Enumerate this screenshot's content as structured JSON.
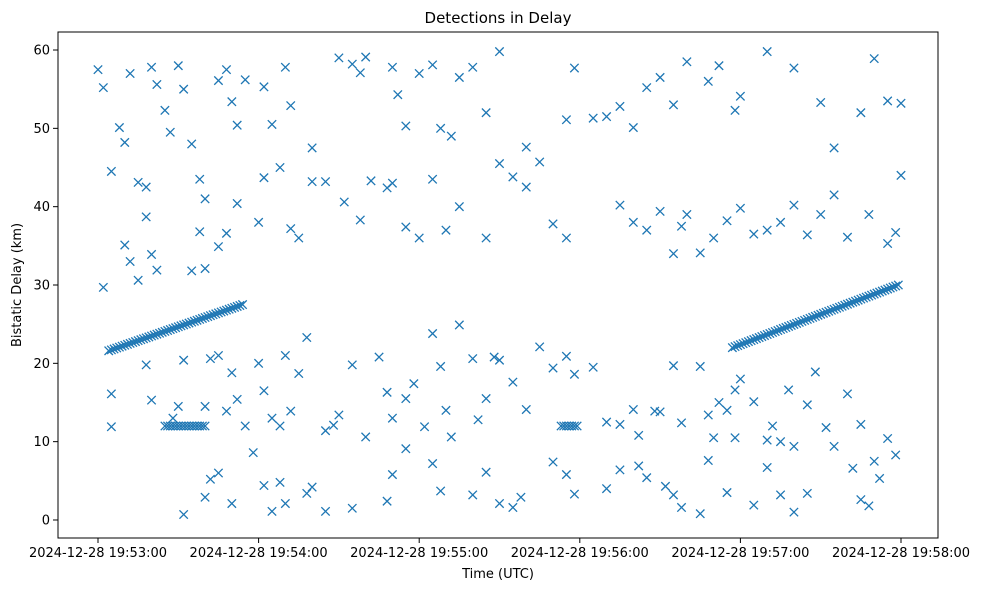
{
  "chart_data": {
    "type": "scatter",
    "title": "Detections in Delay",
    "xlabel": "Time (UTC)",
    "ylabel": "Bistatic Delay (km)",
    "marker": "x",
    "color": "#1f77b4",
    "grid": false,
    "legend": "none",
    "x_unit": "seconds after 2024-12-28 19:53:00",
    "xlim_labels": [
      "2024-12-28 19:53:00",
      "2024-12-28 19:58:00"
    ],
    "ylim": [
      -2.3,
      62.3
    ],
    "x_ticks": [
      "2024-12-28 19:53:00",
      "2024-12-28 19:54:00",
      "2024-12-28 19:55:00",
      "2024-12-28 19:56:00",
      "2024-12-28 19:57:00",
      "2024-12-28 19:58:00"
    ],
    "y_ticks": [
      "0",
      "10",
      "20",
      "30",
      "40",
      "50",
      "60"
    ],
    "tracks": [
      {
        "from": [
          "2024-12-28 19:53:04",
          21.6
        ],
        "to": [
          "2024-12-28 19:53:54",
          27.5
        ]
      },
      {
        "from": [
          "2024-12-28 19:56:57",
          22.0
        ],
        "to": [
          "2024-12-28 19:57:59",
          30.0
        ]
      },
      {
        "from": [
          "2024-12-28 19:53:25",
          12.0
        ],
        "to": [
          "2024-12-28 19:53:40",
          12.0
        ]
      },
      {
        "from": [
          "2024-12-28 19:55:53",
          12.0
        ],
        "to": [
          "2024-12-28 19:55:59",
          12.0
        ]
      }
    ],
    "scatter": [
      [
        "2024-12-28 19:53:00",
        57.5
      ],
      [
        "2024-12-28 19:53:02",
        55.2
      ],
      [
        "2024-12-28 19:53:05",
        44.5
      ],
      [
        "2024-12-28 19:53:08",
        50.1
      ],
      [
        "2024-12-28 19:53:10",
        48.2
      ],
      [
        "2024-12-28 19:53:12",
        57.0
      ],
      [
        "2024-12-28 19:53:15",
        43.1
      ],
      [
        "2024-12-28 19:53:18",
        42.5
      ],
      [
        "2024-12-28 19:53:20",
        57.8
      ],
      [
        "2024-12-28 19:53:22",
        55.6
      ],
      [
        "2024-12-28 19:53:25",
        52.3
      ],
      [
        "2024-12-28 19:53:27",
        49.5
      ],
      [
        "2024-12-28 19:53:30",
        58.0
      ],
      [
        "2024-12-28 19:53:32",
        55.0
      ],
      [
        "2024-12-28 19:53:35",
        48.0
      ],
      [
        "2024-12-28 19:53:38",
        43.5
      ],
      [
        "2024-12-28 19:53:40",
        41.0
      ],
      [
        "2024-12-28 19:53:45",
        56.1
      ],
      [
        "2024-12-28 19:53:48",
        57.5
      ],
      [
        "2024-12-28 19:53:50",
        53.4
      ],
      [
        "2024-12-28 19:53:52",
        50.4
      ],
      [
        "2024-12-28 19:53:55",
        56.2
      ],
      [
        "2024-12-28 19:54:02",
        55.3
      ],
      [
        "2024-12-28 19:54:05",
        50.5
      ],
      [
        "2024-12-28 19:54:10",
        57.8
      ],
      [
        "2024-12-28 19:54:12",
        52.9
      ],
      [
        "2024-12-28 19:54:20",
        47.5
      ],
      [
        "2024-12-28 19:54:30",
        59.0
      ],
      [
        "2024-12-28 19:54:35",
        58.2
      ],
      [
        "2024-12-28 19:54:38",
        57.1
      ],
      [
        "2024-12-28 19:54:40",
        59.1
      ],
      [
        "2024-12-28 19:54:50",
        57.8
      ],
      [
        "2024-12-28 19:54:52",
        54.3
      ],
      [
        "2024-12-28 19:54:55",
        50.3
      ],
      [
        "2024-12-28 19:55:00",
        57.0
      ],
      [
        "2024-12-28 19:55:05",
        58.1
      ],
      [
        "2024-12-28 19:55:08",
        50.0
      ],
      [
        "2024-12-28 19:55:12",
        49.0
      ],
      [
        "2024-12-28 19:55:15",
        56.5
      ],
      [
        "2024-12-28 19:55:20",
        57.8
      ],
      [
        "2024-12-28 19:55:25",
        52.0
      ],
      [
        "2024-12-28 19:55:30",
        59.8
      ],
      [
        "2024-12-28 19:55:40",
        47.6
      ],
      [
        "2024-12-28 19:55:45",
        45.7
      ],
      [
        "2024-12-28 19:55:55",
        51.1
      ],
      [
        "2024-12-28 19:55:58",
        57.7
      ],
      [
        "2024-12-28 19:56:05",
        51.3
      ],
      [
        "2024-12-28 19:56:10",
        51.5
      ],
      [
        "2024-12-28 19:56:15",
        52.8
      ],
      [
        "2024-12-28 19:56:20",
        50.1
      ],
      [
        "2024-12-28 19:56:25",
        55.2
      ],
      [
        "2024-12-28 19:56:30",
        56.5
      ],
      [
        "2024-12-28 19:56:35",
        53.0
      ],
      [
        "2024-12-28 19:56:40",
        58.5
      ],
      [
        "2024-12-28 19:56:48",
        56.0
      ],
      [
        "2024-12-28 19:56:52",
        58.0
      ],
      [
        "2024-12-28 19:56:58",
        52.3
      ],
      [
        "2024-12-28 19:57:00",
        54.1
      ],
      [
        "2024-12-28 19:57:10",
        59.8
      ],
      [
        "2024-12-28 19:57:20",
        57.7
      ],
      [
        "2024-12-28 19:57:30",
        53.3
      ],
      [
        "2024-12-28 19:57:35",
        47.5
      ],
      [
        "2024-12-28 19:57:45",
        52.0
      ],
      [
        "2024-12-28 19:57:50",
        58.9
      ],
      [
        "2024-12-28 19:57:55",
        53.5
      ],
      [
        "2024-12-28 19:58:00",
        53.2
      ],
      [
        "2024-12-28 19:58:00",
        44.0
      ],
      [
        "2024-12-28 19:53:02",
        29.7
      ],
      [
        "2024-12-28 19:53:10",
        35.1
      ],
      [
        "2024-12-28 19:53:12",
        33.0
      ],
      [
        "2024-12-28 19:53:15",
        30.6
      ],
      [
        "2024-12-28 19:53:18",
        38.7
      ],
      [
        "2024-12-28 19:53:20",
        33.9
      ],
      [
        "2024-12-28 19:53:22",
        31.9
      ],
      [
        "2024-12-28 19:53:35",
        31.8
      ],
      [
        "2024-12-28 19:53:38",
        36.8
      ],
      [
        "2024-12-28 19:53:40",
        32.1
      ],
      [
        "2024-12-28 19:53:45",
        34.9
      ],
      [
        "2024-12-28 19:53:48",
        36.6
      ],
      [
        "2024-12-28 19:53:52",
        40.4
      ],
      [
        "2024-12-28 19:54:00",
        38.0
      ],
      [
        "2024-12-28 19:54:02",
        43.7
      ],
      [
        "2024-12-28 19:54:08",
        45.0
      ],
      [
        "2024-12-28 19:54:12",
        37.2
      ],
      [
        "2024-12-28 19:54:15",
        36.0
      ],
      [
        "2024-12-28 19:54:20",
        43.2
      ],
      [
        "2024-12-28 19:54:25",
        43.2
      ],
      [
        "2024-12-28 19:54:32",
        40.6
      ],
      [
        "2024-12-28 19:54:38",
        38.3
      ],
      [
        "2024-12-28 19:54:42",
        43.3
      ],
      [
        "2024-12-28 19:54:48",
        42.4
      ],
      [
        "2024-12-28 19:54:50",
        43.0
      ],
      [
        "2024-12-28 19:54:55",
        37.4
      ],
      [
        "2024-12-28 19:55:00",
        36.0
      ],
      [
        "2024-12-28 19:55:05",
        43.5
      ],
      [
        "2024-12-28 19:55:10",
        37.0
      ],
      [
        "2024-12-28 19:55:15",
        40.0
      ],
      [
        "2024-12-28 19:55:25",
        36.0
      ],
      [
        "2024-12-28 19:55:30",
        45.5
      ],
      [
        "2024-12-28 19:55:35",
        43.8
      ],
      [
        "2024-12-28 19:55:40",
        42.5
      ],
      [
        "2024-12-28 19:55:50",
        37.8
      ],
      [
        "2024-12-28 19:55:55",
        36.0
      ],
      [
        "2024-12-28 19:56:15",
        40.2
      ],
      [
        "2024-12-28 19:56:20",
        38.0
      ],
      [
        "2024-12-28 19:56:25",
        37.0
      ],
      [
        "2024-12-28 19:56:30",
        39.4
      ],
      [
        "2024-12-28 19:56:35",
        34.0
      ],
      [
        "2024-12-28 19:56:38",
        37.5
      ],
      [
        "2024-12-28 19:56:40",
        39.0
      ],
      [
        "2024-12-28 19:56:45",
        34.1
      ],
      [
        "2024-12-28 19:56:50",
        36.0
      ],
      [
        "2024-12-28 19:56:55",
        38.2
      ],
      [
        "2024-12-28 19:57:00",
        39.8
      ],
      [
        "2024-12-28 19:57:05",
        36.5
      ],
      [
        "2024-12-28 19:57:10",
        37.0
      ],
      [
        "2024-12-28 19:57:15",
        38.0
      ],
      [
        "2024-12-28 19:57:20",
        40.2
      ],
      [
        "2024-12-28 19:57:25",
        36.4
      ],
      [
        "2024-12-28 19:57:30",
        39.0
      ],
      [
        "2024-12-28 19:57:35",
        41.5
      ],
      [
        "2024-12-28 19:57:40",
        36.1
      ],
      [
        "2024-12-28 19:57:48",
        39.0
      ],
      [
        "2024-12-28 19:57:55",
        35.3
      ],
      [
        "2024-12-28 19:57:58",
        36.7
      ],
      [
        "2024-12-28 19:53:05",
        16.1
      ],
      [
        "2024-12-28 19:53:05",
        11.9
      ],
      [
        "2024-12-28 19:53:18",
        19.8
      ],
      [
        "2024-12-28 19:53:20",
        15.3
      ],
      [
        "2024-12-28 19:53:28",
        13.0
      ],
      [
        "2024-12-28 19:53:30",
        14.5
      ],
      [
        "2024-12-28 19:53:32",
        20.4
      ],
      [
        "2024-12-28 19:53:40",
        14.5
      ],
      [
        "2024-12-28 19:53:42",
        20.6
      ],
      [
        "2024-12-28 19:53:45",
        21.0
      ],
      [
        "2024-12-28 19:53:48",
        13.9
      ],
      [
        "2024-12-28 19:53:50",
        18.8
      ],
      [
        "2024-12-28 19:53:52",
        15.4
      ],
      [
        "2024-12-28 19:53:55",
        12.0
      ],
      [
        "2024-12-28 19:54:00",
        20.0
      ],
      [
        "2024-12-28 19:54:02",
        16.5
      ],
      [
        "2024-12-28 19:54:05",
        13.0
      ],
      [
        "2024-12-28 19:54:08",
        12.0
      ],
      [
        "2024-12-28 19:54:10",
        21.0
      ],
      [
        "2024-12-28 19:54:12",
        13.9
      ],
      [
        "2024-12-28 19:54:15",
        18.7
      ],
      [
        "2024-12-28 19:54:18",
        23.3
      ],
      [
        "2024-12-28 19:54:25",
        11.4
      ],
      [
        "2024-12-28 19:54:28",
        12.1
      ],
      [
        "2024-12-28 19:54:30",
        13.4
      ],
      [
        "2024-12-28 19:54:35",
        19.8
      ],
      [
        "2024-12-28 19:54:40",
        10.6
      ],
      [
        "2024-12-28 19:54:45",
        20.8
      ],
      [
        "2024-12-28 19:54:48",
        16.3
      ],
      [
        "2024-12-28 19:54:50",
        13.0
      ],
      [
        "2024-12-28 19:54:55",
        15.5
      ],
      [
        "2024-12-28 19:54:58",
        17.4
      ],
      [
        "2024-12-28 19:55:02",
        11.9
      ],
      [
        "2024-12-28 19:55:05",
        23.8
      ],
      [
        "2024-12-28 19:55:08",
        19.6
      ],
      [
        "2024-12-28 19:55:10",
        14.0
      ],
      [
        "2024-12-28 19:55:12",
        10.6
      ],
      [
        "2024-12-28 19:55:15",
        24.9
      ],
      [
        "2024-12-28 19:55:20",
        20.6
      ],
      [
        "2024-12-28 19:55:22",
        12.8
      ],
      [
        "2024-12-28 19:55:25",
        15.5
      ],
      [
        "2024-12-28 19:55:28",
        20.8
      ],
      [
        "2024-12-28 19:55:30",
        20.4
      ],
      [
        "2024-12-28 19:55:35",
        17.6
      ],
      [
        "2024-12-28 19:55:40",
        14.1
      ],
      [
        "2024-12-28 19:55:45",
        22.1
      ],
      [
        "2024-12-28 19:55:50",
        19.4
      ],
      [
        "2024-12-28 19:55:55",
        20.9
      ],
      [
        "2024-12-28 19:55:58",
        18.6
      ],
      [
        "2024-12-28 19:56:05",
        19.5
      ],
      [
        "2024-12-28 19:56:10",
        12.5
      ],
      [
        "2024-12-28 19:56:15",
        12.2
      ],
      [
        "2024-12-28 19:56:20",
        14.1
      ],
      [
        "2024-12-28 19:56:22",
        10.8
      ],
      [
        "2024-12-28 19:56:28",
        13.9
      ],
      [
        "2024-12-28 19:56:30",
        13.8
      ],
      [
        "2024-12-28 19:56:35",
        19.7
      ],
      [
        "2024-12-28 19:56:38",
        12.4
      ],
      [
        "2024-12-28 19:56:45",
        19.6
      ],
      [
        "2024-12-28 19:56:48",
        13.4
      ],
      [
        "2024-12-28 19:56:50",
        10.5
      ],
      [
        "2024-12-28 19:56:52",
        15.0
      ],
      [
        "2024-12-28 19:56:55",
        14.0
      ],
      [
        "2024-12-28 19:56:58",
        16.6
      ],
      [
        "2024-12-28 19:57:00",
        18.0
      ],
      [
        "2024-12-28 19:57:05",
        15.1
      ],
      [
        "2024-12-28 19:57:10",
        10.2
      ],
      [
        "2024-12-28 19:57:12",
        12.0
      ],
      [
        "2024-12-28 19:57:15",
        10.0
      ],
      [
        "2024-12-28 19:57:18",
        16.6
      ],
      [
        "2024-12-28 19:57:20",
        9.4
      ],
      [
        "2024-12-28 19:57:25",
        14.7
      ],
      [
        "2024-12-28 19:57:28",
        18.9
      ],
      [
        "2024-12-28 19:57:32",
        11.8
      ],
      [
        "2024-12-28 19:57:40",
        16.1
      ],
      [
        "2024-12-28 19:57:45",
        12.2
      ],
      [
        "2024-12-28 19:57:50",
        7.5
      ],
      [
        "2024-12-28 19:57:55",
        10.4
      ],
      [
        "2024-12-28 19:57:58",
        8.3
      ],
      [
        "2024-12-28 19:53:32",
        0.7
      ],
      [
        "2024-12-28 19:53:40",
        2.9
      ],
      [
        "2024-12-28 19:53:42",
        5.2
      ],
      [
        "2024-12-28 19:53:45",
        6.0
      ],
      [
        "2024-12-28 19:53:50",
        2.1
      ],
      [
        "2024-12-28 19:53:58",
        8.6
      ],
      [
        "2024-12-28 19:54:02",
        4.4
      ],
      [
        "2024-12-28 19:54:05",
        1.1
      ],
      [
        "2024-12-28 19:54:08",
        4.8
      ],
      [
        "2024-12-28 19:54:10",
        2.1
      ],
      [
        "2024-12-28 19:54:18",
        3.4
      ],
      [
        "2024-12-28 19:54:20",
        4.2
      ],
      [
        "2024-12-28 19:54:25",
        1.1
      ],
      [
        "2024-12-28 19:54:35",
        1.5
      ],
      [
        "2024-12-28 19:54:48",
        2.4
      ],
      [
        "2024-12-28 19:54:50",
        5.8
      ],
      [
        "2024-12-28 19:54:55",
        9.1
      ],
      [
        "2024-12-28 19:55:05",
        7.2
      ],
      [
        "2024-12-28 19:55:08",
        3.7
      ],
      [
        "2024-12-28 19:55:20",
        3.2
      ],
      [
        "2024-12-28 19:55:25",
        6.1
      ],
      [
        "2024-12-28 19:55:30",
        2.1
      ],
      [
        "2024-12-28 19:55:35",
        1.6
      ],
      [
        "2024-12-28 19:55:38",
        2.9
      ],
      [
        "2024-12-28 19:55:50",
        7.4
      ],
      [
        "2024-12-28 19:55:55",
        5.8
      ],
      [
        "2024-12-28 19:55:58",
        3.3
      ],
      [
        "2024-12-28 19:56:10",
        4.0
      ],
      [
        "2024-12-28 19:56:15",
        6.4
      ],
      [
        "2024-12-28 19:56:22",
        6.9
      ],
      [
        "2024-12-28 19:56:25",
        5.4
      ],
      [
        "2024-12-28 19:56:32",
        4.3
      ],
      [
        "2024-12-28 19:56:35",
        3.2
      ],
      [
        "2024-12-28 19:56:38",
        1.6
      ],
      [
        "2024-12-28 19:56:45",
        0.8
      ],
      [
        "2024-12-28 19:56:48",
        7.6
      ],
      [
        "2024-12-28 19:56:55",
        3.5
      ],
      [
        "2024-12-28 19:56:58",
        10.5
      ],
      [
        "2024-12-28 19:57:05",
        1.9
      ],
      [
        "2024-12-28 19:57:10",
        6.7
      ],
      [
        "2024-12-28 19:57:15",
        3.2
      ],
      [
        "2024-12-28 19:57:20",
        1.0
      ],
      [
        "2024-12-28 19:57:25",
        3.4
      ],
      [
        "2024-12-28 19:57:35",
        9.4
      ],
      [
        "2024-12-28 19:57:42",
        6.6
      ],
      [
        "2024-12-28 19:57:45",
        2.6
      ],
      [
        "2024-12-28 19:57:48",
        1.8
      ],
      [
        "2024-12-28 19:57:52",
        5.3
      ]
    ]
  }
}
